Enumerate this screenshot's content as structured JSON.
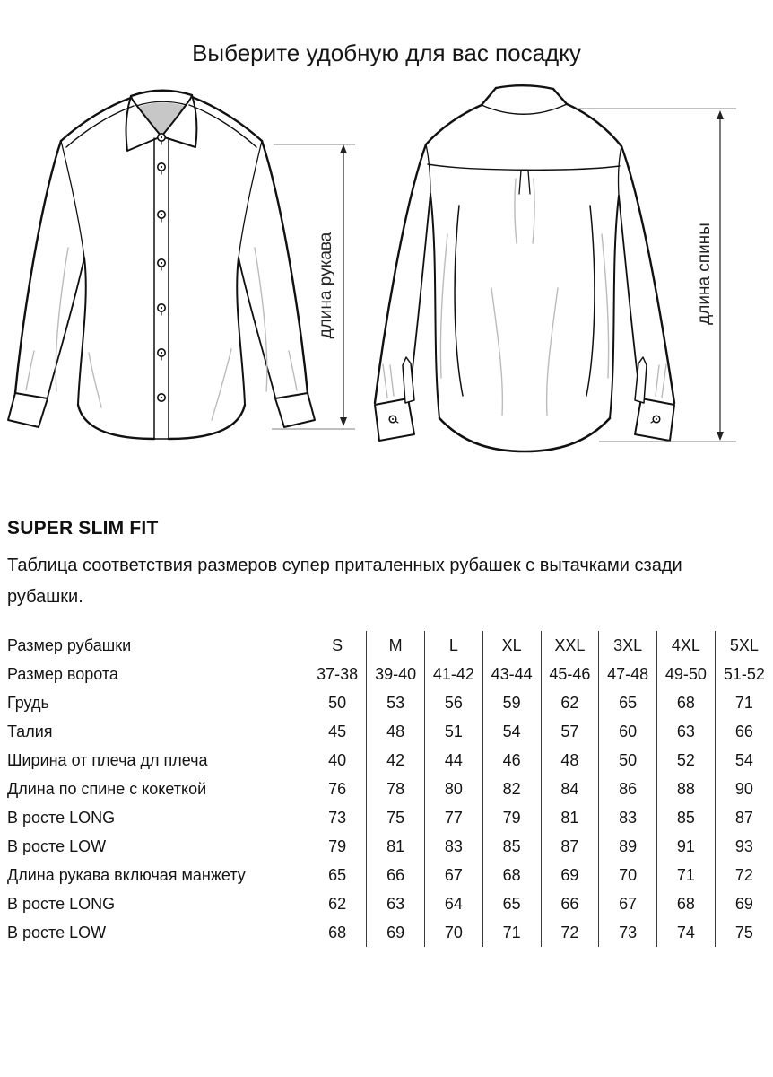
{
  "page": {
    "title": "Выберите удобную для вас посадку"
  },
  "figures": {
    "front_shirt": {
      "description": "shirt front technical drawing",
      "dimension_label": "длина рукава"
    },
    "back_shirt": {
      "description": "shirt back technical drawing",
      "dimension_label": "длина спины"
    }
  },
  "section": {
    "heading": "SUPER SLIM FIT",
    "description": "Таблица соответствия размеров супер приталенных рубашек с вытачками сзади рубашки."
  },
  "size_table": {
    "rows": [
      {
        "label": "Размер рубашки",
        "values": [
          "S",
          "M",
          "L",
          "XL",
          "XXL",
          "3XL",
          "4XL",
          "5XL"
        ]
      },
      {
        "label": "Размер ворота",
        "values": [
          "37-38",
          "39-40",
          "41-42",
          "43-44",
          "45-46",
          "47-48",
          "49-50",
          "51-52"
        ]
      },
      {
        "label": "Грудь",
        "values": [
          "50",
          "53",
          "56",
          "59",
          "62",
          "65",
          "68",
          "71"
        ]
      },
      {
        "label": "Талия",
        "values": [
          "45",
          "48",
          "51",
          "54",
          "57",
          "60",
          "63",
          "66"
        ]
      },
      {
        "label": "Ширина от плеча дл плеча",
        "values": [
          "40",
          "42",
          "44",
          "46",
          "48",
          "50",
          "52",
          "54"
        ]
      },
      {
        "label": "Длина по спине с кокеткой",
        "values": [
          "76",
          "78",
          "80",
          "82",
          "84",
          "86",
          "88",
          "90"
        ]
      },
      {
        "label": "В росте LONG",
        "values": [
          "73",
          "75",
          "77",
          "79",
          "81",
          "83",
          "85",
          "87"
        ]
      },
      {
        "label": "В росте LOW",
        "values": [
          "79",
          "81",
          "83",
          "85",
          "87",
          "89",
          "91",
          "93"
        ]
      },
      {
        "label": "Длина рукава включая манжету",
        "values": [
          "65",
          "66",
          "67",
          "68",
          "69",
          "70",
          "71",
          "72"
        ]
      },
      {
        "label": "В росте LONG",
        "values": [
          "62",
          "63",
          "64",
          "65",
          "66",
          "67",
          "68",
          "69"
        ]
      },
      {
        "label": "В росте LOW",
        "values": [
          "68",
          "69",
          "70",
          "71",
          "72",
          "73",
          "74",
          "75"
        ]
      }
    ]
  },
  "colors": {
    "ink": "#111111",
    "fold_line": "#bbbbbb",
    "collar_shadow": "#c7c7c7",
    "dimension_cap": "#9a9a9a",
    "dimension_line": "#222222"
  }
}
